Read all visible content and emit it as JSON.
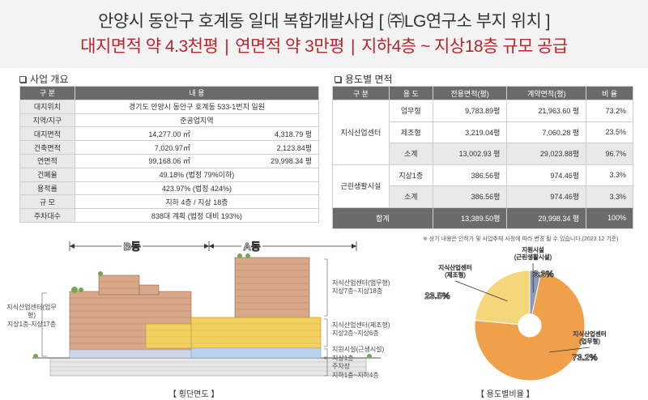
{
  "header": {
    "title_line1": "안양시 동안구 호계동 일대 복합개발사업 [ ㈜LG연구소 부지 위치 ]",
    "title_line2_parts": [
      "대지면적 약 4.3천평",
      "연면적 약 3만평",
      "지하4층 ~ 지상18층 규모 공급"
    ],
    "separator": "|"
  },
  "overview": {
    "section_title": "사업 개요",
    "headers": [
      "구 분",
      "내 용"
    ],
    "rows": [
      {
        "label": "대지위치",
        "value": "경기도 안양시 동안구 호계동 533-1번지 일원"
      },
      {
        "label": "지역/지구",
        "value": "준공업지역"
      },
      {
        "label": "대지면적",
        "v1": "14,277.00 ㎡",
        "v2": "4,318.79 평"
      },
      {
        "label": "건축면적",
        "v1": "7,020.97㎡",
        "v2": "2,123.84평"
      },
      {
        "label": "연면적",
        "v1": "99,168.06 ㎡",
        "v2": "29,998.34 평"
      },
      {
        "label": "건폐율",
        "value": "49.18% (법정 79%이하)"
      },
      {
        "label": "용적률",
        "value": "423.97% (법정 424%)"
      },
      {
        "label": "규 모",
        "value": "지하 4층  /  지상 18층"
      },
      {
        "label": "주차대수",
        "value": "838대 계획  (법정 대비 193%)"
      }
    ]
  },
  "usage": {
    "section_title": "용도별 면적",
    "headers": [
      "구 분",
      "용 도",
      "전용면적(평)",
      "계약면적(평)",
      "비 율"
    ],
    "group1": "지식산업센터",
    "group2": "근린생활시설",
    "rows": [
      {
        "use": "업무형",
        "excl": "9,783.89평",
        "contract": "21,963.60 평",
        "ratio": "73.2%"
      },
      {
        "use": "제조형",
        "excl": "3,219.04평",
        "contract": "7,060.28 평",
        "ratio": "23.5%"
      },
      {
        "use": "소계",
        "excl": "13,002.93 평",
        "contract": "29,023.88평",
        "ratio": "96.7%"
      },
      {
        "use": "지상1층",
        "excl": "386.56평",
        "contract": "974.46평",
        "ratio": "3.3%"
      },
      {
        "use": "소계",
        "excl": "386.56평",
        "contract": "974.46평",
        "ratio": "3.3%"
      }
    ],
    "total": {
      "label": "합계",
      "excl": "13,389.50평",
      "contract": "29,998.34 평",
      "ratio": "100%"
    },
    "note": "※ 상기 내용은 인허가 및 사업추체 사정에 따라 변경 될 수 있습니다.(2023.12 기준)"
  },
  "section_drawing": {
    "building_b": "B동",
    "building_a": "A동",
    "left_label": "지식산업센터(업무형)\n지상1층-지상17층",
    "right_labels": [
      "지식산업센터(업무형)\n지상7층~지상18층",
      "지식산업센터(제조형)\n지상2층~지상6층",
      "지원시설(근생시설)",
      "지상1층\n주차장\n지하1층~지하4층"
    ],
    "caption": "【 횡단면도 】"
  },
  "chart_data": {
    "type": "pie",
    "title": "",
    "caption": "【 용도별비율 】",
    "slices": [
      {
        "label": "지식산업센터\n(업무형)",
        "value": 73.2,
        "value_label": "73.2%",
        "color": "#f0a04b"
      },
      {
        "label": "지식산업센터\n(제조형)",
        "value": 23.5,
        "value_label": "23.5%",
        "color": "#f5d67a"
      },
      {
        "label": "지원시설\n(근린생활시설)",
        "value": 3.3,
        "value_label": "3.3%",
        "color": "#8a9bb8"
      }
    ]
  }
}
